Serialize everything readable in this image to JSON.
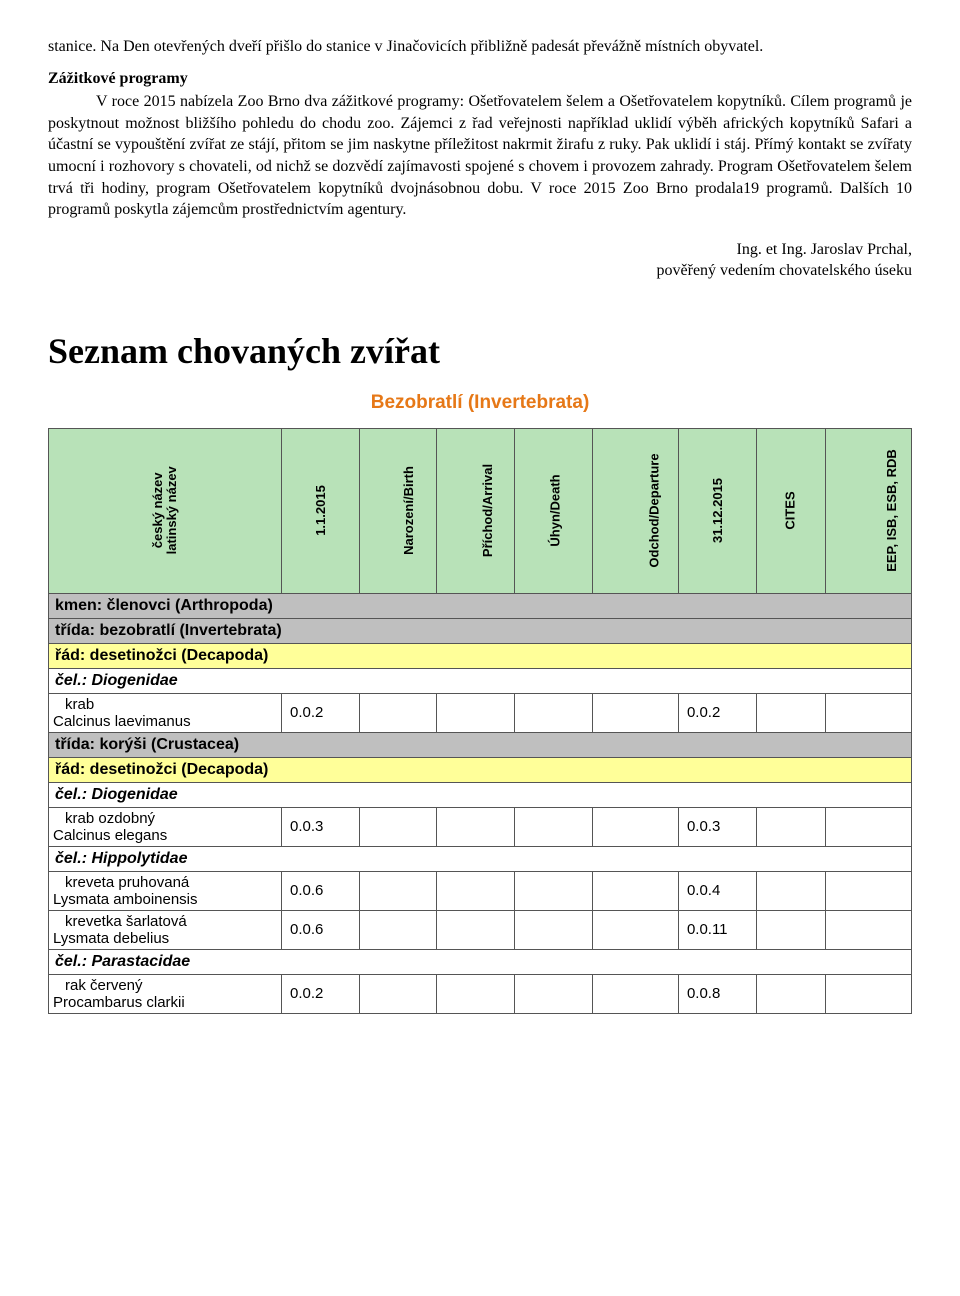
{
  "colors": {
    "header_bg": "#b8e2b8",
    "grey_row": "#bfbfbf",
    "yellow_row": "#ffff99",
    "bezobr_color": "#e67817"
  },
  "paragraphs": {
    "p1": "stanice. Na Den otevřených dveří přišlo do stanice v Jinačovicích přibližně padesát převážně místních obyvatel.",
    "p2_title": "Zážitkové programy",
    "p2_body": "V roce 2015 nabízela Zoo Brno dva zážitkové programy: Ošetřovatelem šelem a Ošetřovatelem kopytníků. Cílem programů je poskytnout možnost bližšího pohledu do chodu zoo. Zájemci z řad veřejnosti například uklidí výběh afrických kopytníků Safari a účastní se vypouštění zvířat ze stájí, přitom se jim naskytne příležitost nakrmit žirafu z ruky. Pak uklidí i stáj. Přímý kontakt se zvířaty umocní i rozhovory s chovateli, od nichž se dozvědí zajímavosti spojené s chovem i provozem zahrady. Program Ošetřovatelem šelem trvá tři hodiny, program Ošetřovatelem kopytníků dvojnásobnou dobu. V roce 2015 Zoo Brno prodala19 programů. Dalších 10 programů poskytla zájemcům prostřednictvím agentury."
  },
  "signature": {
    "line1": "Ing. et Ing. Jaroslav Prchal,",
    "line2": "pověřený vedením chovatelského úseku"
  },
  "list_title": "Seznam chovaných zvířat",
  "bezobr": "Bezobratlí (Invertebrata)",
  "columns": {
    "name": "český název\nlatinský název",
    "c1": "1.1.2015",
    "c2": "Narození/Birth",
    "c3": "Příchod/Arrival",
    "c4": "Úhyn/Death",
    "c5": "Odchod/Departure",
    "c6": "31.12.2015",
    "c7": "CITES",
    "c8": "EEP, ISB, ESB, RDB"
  },
  "taxa": {
    "kmen": "kmen: členovci (Arthropoda)",
    "trida1": "třída: bezobratlí (Invertebrata)",
    "rad1": "řád: desetinožci (Decapoda)",
    "cel1": "čel.: Diogenidae",
    "trida2": "třída: korýši (Crustacea)",
    "rad2": "řád: desetinožci (Decapoda)",
    "cel2": "čel.: Diogenidae",
    "cel3": "čel.: Hippolytidae",
    "cel4": "čel.: Parastacidae"
  },
  "species": [
    {
      "cz": "krab",
      "lat": "Calcinus laevimanus",
      "v1": "0.0.2",
      "v6": "0.0.2"
    },
    {
      "cz": "krab ozdobný",
      "lat": "Calcinus elegans",
      "v1": "0.0.3",
      "v6": "0.0.3"
    },
    {
      "cz": "kreveta pruhovaná",
      "lat": "Lysmata amboinensis",
      "v1": "0.0.6",
      "v6": "0.0.4"
    },
    {
      "cz": "krevetka šarlatová",
      "lat": "Lysmata debelius",
      "v1": "0.0.6",
      "v6": "0.0.11"
    },
    {
      "cz": "rak červený",
      "lat": "Procambarus clarkii",
      "v1": "0.0.2",
      "v6": "0.0.8"
    }
  ],
  "col_widths": [
    "27%",
    "9%",
    "9%",
    "9%",
    "9%",
    "10%",
    "9%",
    "8%",
    "10%"
  ]
}
